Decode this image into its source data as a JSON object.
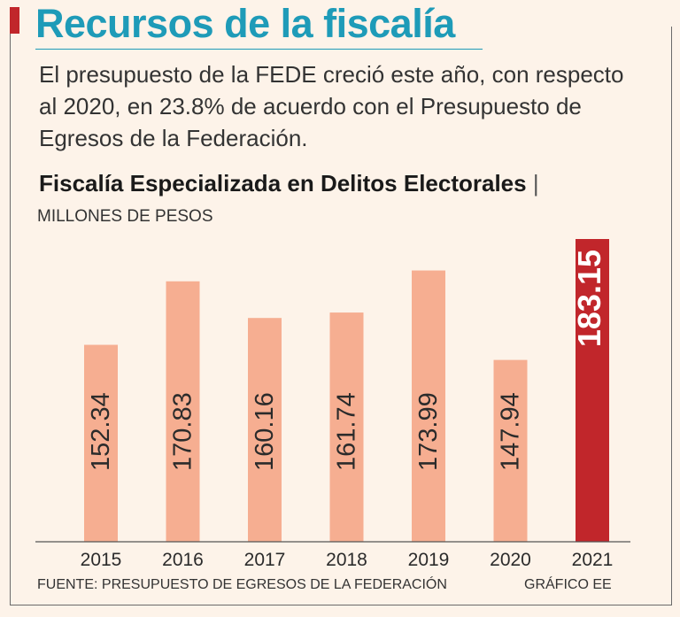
{
  "header": {
    "title": "Recursos de la fiscalía",
    "subtitle": "El presupuesto de la FEDE creció este año, con respecto al 2020, en 23.8% de acuerdo con el Presupuesto de Egresos de la Federación."
  },
  "chart_data": {
    "type": "bar",
    "title": "Fiscalía Especializada en Delitos Electorales",
    "title_separator": "|",
    "ylabel": "MILLONES DE PESOS",
    "xlabel": "",
    "categories": [
      "2015",
      "2016",
      "2017",
      "2018",
      "2019",
      "2020",
      "2021"
    ],
    "values": [
      152.34,
      170.83,
      160.16,
      161.74,
      173.99,
      147.94,
      183.15
    ],
    "value_labels": [
      "152.34",
      "170.83",
      "160.16",
      "161.74",
      "173.99",
      "147.94",
      "183.15"
    ],
    "highlight_index": 6,
    "ylim": [
      95,
      183.15
    ],
    "grid": false,
    "colors": {
      "bar": "#f6ae91",
      "highlight": "#c1262b",
      "text": "#2b2b2b",
      "highlight_text": "#ffffff",
      "axis": "#555555"
    }
  },
  "footer": {
    "source": "FUENTE: PRESUPUESTO DE EGRESOS DE LA FEDERACIÓN",
    "credit": "GRÁFICO EE"
  }
}
